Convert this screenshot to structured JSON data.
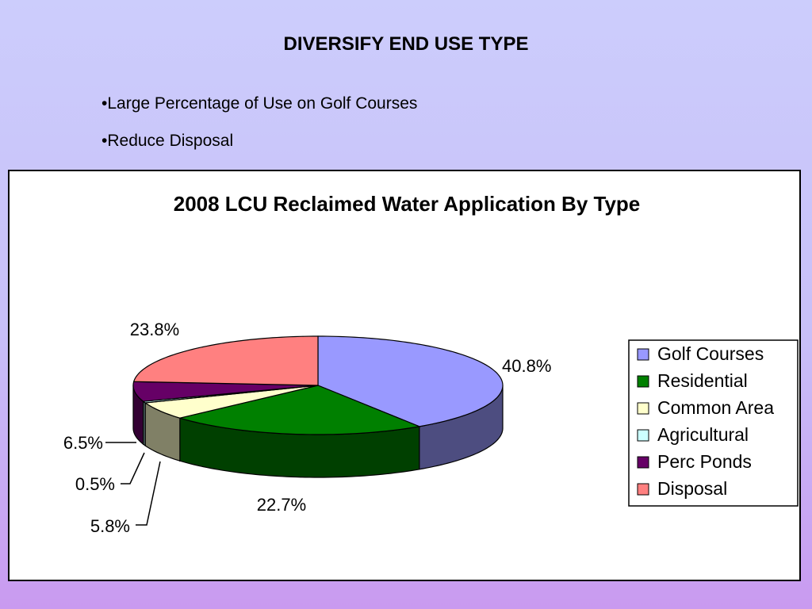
{
  "slide": {
    "title": "DIVERSIFY END USE TYPE",
    "bullets": [
      "•Large Percentage of Use on Golf Courses",
      "•Reduce Disposal"
    ]
  },
  "chart_data": {
    "type": "pie",
    "title": "2008 LCU Reclaimed Water Application By Type",
    "three_d": true,
    "legend_position": "right",
    "slices": [
      {
        "name": "Golf Courses",
        "value": 40.8,
        "label": "40.8%",
        "color": "#9999ff",
        "side": "#4d4d80"
      },
      {
        "name": "Residential",
        "value": 22.7,
        "label": "22.7%",
        "color": "#008000",
        "side": "#004000"
      },
      {
        "name": "Common Area",
        "value": 5.8,
        "label": "5.8%",
        "color": "#ffffcc",
        "side": "#808066"
      },
      {
        "name": "Agricultural",
        "value": 0.5,
        "label": "0.5%",
        "color": "#ccffff",
        "side": "#668080"
      },
      {
        "name": "Perc Ponds",
        "value": 6.5,
        "label": "6.5%",
        "color": "#660066",
        "side": "#330033"
      },
      {
        "name": "Disposal",
        "value": 23.8,
        "label": "23.8%",
        "color": "#ff8080",
        "side": "#804040"
      }
    ]
  }
}
